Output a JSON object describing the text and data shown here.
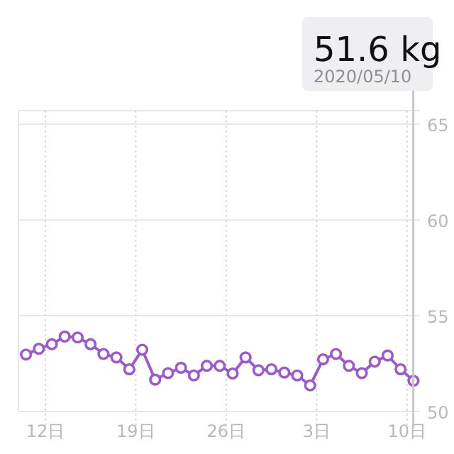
{
  "chart_data": {
    "type": "line",
    "x": [
      "2020-04-10T12:00",
      "2020-04-11T12:00",
      "2020-04-12T12:00",
      "2020-04-13T12:00",
      "2020-04-14T12:00",
      "2020-04-15T12:00",
      "2020-04-16T12:00",
      "2020-04-17T12:00",
      "2020-04-18T12:00",
      "2020-04-19T12:00",
      "2020-04-20T12:00",
      "2020-04-21T12:00",
      "2020-04-22T12:00",
      "2020-04-23T12:00",
      "2020-04-24T12:00",
      "2020-04-25T12:00",
      "2020-04-26T12:00",
      "2020-04-27T12:00",
      "2020-04-28T12:00",
      "2020-04-29T12:00",
      "2020-04-30T12:00",
      "2020-05-01T12:00",
      "2020-05-02T12:00",
      "2020-05-03T12:00",
      "2020-05-04T12:00",
      "2020-05-05T12:00",
      "2020-05-06T12:00",
      "2020-05-07T12:00",
      "2020-05-08T12:00",
      "2020-05-09T12:00",
      "2020-05-10T12:00"
    ],
    "series": [
      {
        "color": "#9a5cc6",
        "values": [
          52.97,
          53.27,
          53.51,
          53.91,
          53.86,
          53.51,
          53.0,
          52.82,
          52.2,
          53.22,
          51.66,
          52.0,
          52.28,
          51.88,
          52.38,
          52.38,
          51.98,
          52.82,
          52.15,
          52.2,
          52.03,
          51.88,
          51.36,
          52.72,
          53.0,
          52.38,
          52.0,
          52.6,
          52.92,
          52.2,
          51.6
        ]
      }
    ],
    "xlim": [
      "2020-04-09T22:00",
      "2020-05-11T00:00"
    ],
    "ylim": [
      50,
      65.7
    ],
    "xticks": [
      {
        "value": "2020-04-12",
        "label": "12日"
      },
      {
        "value": "2020-04-19",
        "label": "19日"
      },
      {
        "value": "2020-04-26",
        "label": "26日"
      },
      {
        "value": "2020-05-03",
        "label": "3日"
      },
      {
        "value": "2020-05-10",
        "label": "10日"
      }
    ],
    "yticks": [
      50,
      55,
      60,
      65
    ],
    "grid": true,
    "marker": "circle",
    "line_style": "solid",
    "annotations": [
      "51.6 kg",
      "2020/05/10"
    ]
  }
}
